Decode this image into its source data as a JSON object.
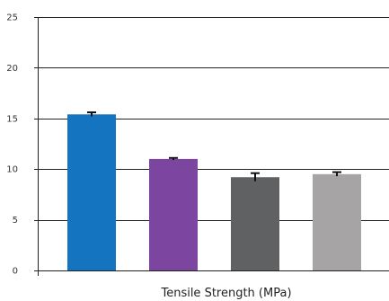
{
  "chart_data": {
    "type": "bar",
    "title": "",
    "xlabel": "Tensile Strength (MPa)",
    "ylabel": "",
    "ylim": [
      0,
      25
    ],
    "yticks": [
      0,
      5,
      10,
      15,
      20,
      25
    ],
    "grid": true,
    "legend": "none",
    "categories": [
      "",
      "",
      "",
      ""
    ],
    "values": [
      15.4,
      11.0,
      9.2,
      9.5
    ],
    "errors": [
      0.2,
      0.1,
      0.4,
      0.2
    ],
    "colors": [
      "#1474bf",
      "#7b45a0",
      "#5f6163",
      "#a6a4a5"
    ]
  }
}
